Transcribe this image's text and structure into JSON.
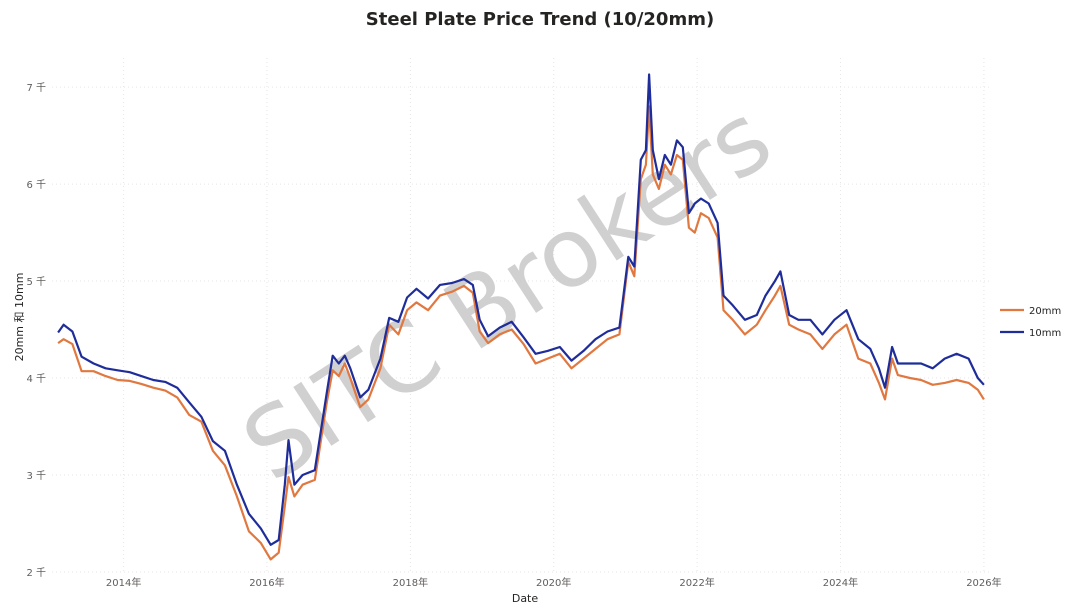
{
  "chart_data": {
    "type": "line",
    "title": "Steel Plate Price Trend (10/20mm)",
    "xlabel": "Date",
    "ylabel": "20mm 和 10mm",
    "ylim": [
      2000,
      7300
    ],
    "xlim": [
      "2013-01-01",
      "2026-02-01"
    ],
    "y_ticks": [
      {
        "value": 2000,
        "label": "2 千"
      },
      {
        "value": 3000,
        "label": "3 千"
      },
      {
        "value": 4000,
        "label": "4 千"
      },
      {
        "value": 5000,
        "label": "5 千"
      },
      {
        "value": 6000,
        "label": "6 千"
      },
      {
        "value": 7000,
        "label": "7 千"
      }
    ],
    "x_ticks": [
      {
        "date": "2014-01-01",
        "label": "2014年"
      },
      {
        "date": "2016-01-01",
        "label": "2016年"
      },
      {
        "date": "2018-01-01",
        "label": "2018年"
      },
      {
        "date": "2020-01-01",
        "label": "2020年"
      },
      {
        "date": "2022-01-01",
        "label": "2022年"
      },
      {
        "date": "2024-01-01",
        "label": "2024年"
      },
      {
        "date": "2026-01-01",
        "label": "2026年"
      }
    ],
    "grid": true,
    "legend_position": "right",
    "watermark": "SITC Brokers",
    "series": [
      {
        "name": "20mm",
        "color": "#e07840",
        "points": [
          [
            "2013-02-01",
            4360
          ],
          [
            "2013-03-01",
            4400
          ],
          [
            "2013-04-15",
            4350
          ],
          [
            "2013-06-01",
            4070
          ],
          [
            "2013-08-01",
            4070
          ],
          [
            "2013-10-01",
            4020
          ],
          [
            "2013-12-01",
            3980
          ],
          [
            "2014-02-01",
            3970
          ],
          [
            "2014-04-01",
            3940
          ],
          [
            "2014-06-01",
            3900
          ],
          [
            "2014-08-01",
            3870
          ],
          [
            "2014-10-01",
            3800
          ],
          [
            "2014-12-01",
            3620
          ],
          [
            "2015-02-01",
            3550
          ],
          [
            "2015-04-01",
            3250
          ],
          [
            "2015-06-01",
            3100
          ],
          [
            "2015-08-01",
            2780
          ],
          [
            "2015-10-01",
            2420
          ],
          [
            "2015-12-01",
            2300
          ],
          [
            "2016-01-20",
            2130
          ],
          [
            "2016-03-01",
            2200
          ],
          [
            "2016-04-01",
            2680
          ],
          [
            "2016-04-20",
            2980
          ],
          [
            "2016-05-20",
            2780
          ],
          [
            "2016-07-01",
            2900
          ],
          [
            "2016-09-01",
            2950
          ],
          [
            "2016-11-01",
            3750
          ],
          [
            "2016-12-01",
            4080
          ],
          [
            "2017-01-01",
            4020
          ],
          [
            "2017-02-01",
            4150
          ],
          [
            "2017-03-01",
            4000
          ],
          [
            "2017-04-20",
            3700
          ],
          [
            "2017-06-01",
            3780
          ],
          [
            "2017-08-01",
            4100
          ],
          [
            "2017-09-15",
            4550
          ],
          [
            "2017-11-01",
            4450
          ],
          [
            "2017-12-15",
            4700
          ],
          [
            "2018-02-01",
            4780
          ],
          [
            "2018-04-01",
            4700
          ],
          [
            "2018-06-01",
            4850
          ],
          [
            "2018-08-01",
            4890
          ],
          [
            "2018-10-01",
            4950
          ],
          [
            "2018-11-15",
            4880
          ],
          [
            "2018-12-20",
            4480
          ],
          [
            "2019-02-01",
            4360
          ],
          [
            "2019-04-01",
            4450
          ],
          [
            "2019-06-01",
            4500
          ],
          [
            "2019-08-01",
            4350
          ],
          [
            "2019-10-01",
            4150
          ],
          [
            "2019-12-01",
            4200
          ],
          [
            "2020-02-01",
            4250
          ],
          [
            "2020-04-01",
            4100
          ],
          [
            "2020-06-01",
            4200
          ],
          [
            "2020-08-01",
            4300
          ],
          [
            "2020-10-01",
            4400
          ],
          [
            "2020-12-01",
            4450
          ],
          [
            "2021-01-15",
            5200
          ],
          [
            "2021-02-15",
            5050
          ],
          [
            "2021-03-20",
            6050
          ],
          [
            "2021-04-15",
            6200
          ],
          [
            "2021-05-01",
            6800
          ],
          [
            "2021-05-20",
            6100
          ],
          [
            "2021-06-20",
            5950
          ],
          [
            "2021-07-20",
            6200
          ],
          [
            "2021-08-20",
            6100
          ],
          [
            "2021-09-20",
            6300
          ],
          [
            "2021-10-20",
            6250
          ],
          [
            "2021-11-20",
            5550
          ],
          [
            "2021-12-20",
            5500
          ],
          [
            "2022-01-20",
            5700
          ],
          [
            "2022-03-01",
            5650
          ],
          [
            "2022-04-15",
            5450
          ],
          [
            "2022-05-15",
            4700
          ],
          [
            "2022-07-01",
            4600
          ],
          [
            "2022-09-01",
            4450
          ],
          [
            "2022-11-01",
            4550
          ],
          [
            "2022-12-15",
            4700
          ],
          [
            "2023-02-01",
            4850
          ],
          [
            "2023-03-01",
            4950
          ],
          [
            "2023-04-15",
            4550
          ],
          [
            "2023-06-01",
            4500
          ],
          [
            "2023-08-01",
            4450
          ],
          [
            "2023-10-01",
            4300
          ],
          [
            "2023-12-01",
            4450
          ],
          [
            "2024-02-01",
            4550
          ],
          [
            "2024-04-01",
            4200
          ],
          [
            "2024-06-01",
            4150
          ],
          [
            "2024-07-15",
            3950
          ],
          [
            "2024-08-15",
            3780
          ],
          [
            "2024-09-20",
            4200
          ],
          [
            "2024-10-20",
            4030
          ],
          [
            "2024-12-20",
            4000
          ],
          [
            "2025-02-15",
            3980
          ],
          [
            "2025-04-15",
            3930
          ],
          [
            "2025-06-15",
            3950
          ],
          [
            "2025-08-15",
            3980
          ],
          [
            "2025-10-15",
            3950
          ],
          [
            "2025-12-01",
            3880
          ],
          [
            "2026-01-01",
            3780
          ]
        ]
      },
      {
        "name": "10mm",
        "color": "#1f2d9a",
        "points": [
          [
            "2013-02-01",
            4470
          ],
          [
            "2013-03-01",
            4550
          ],
          [
            "2013-04-15",
            4480
          ],
          [
            "2013-06-01",
            4220
          ],
          [
            "2013-08-01",
            4150
          ],
          [
            "2013-10-01",
            4100
          ],
          [
            "2013-12-01",
            4080
          ],
          [
            "2014-02-01",
            4060
          ],
          [
            "2014-04-01",
            4020
          ],
          [
            "2014-06-01",
            3980
          ],
          [
            "2014-08-01",
            3960
          ],
          [
            "2014-10-01",
            3900
          ],
          [
            "2014-12-01",
            3750
          ],
          [
            "2015-02-01",
            3600
          ],
          [
            "2015-04-01",
            3350
          ],
          [
            "2015-06-01",
            3250
          ],
          [
            "2015-08-01",
            2900
          ],
          [
            "2015-10-01",
            2600
          ],
          [
            "2015-12-01",
            2450
          ],
          [
            "2016-01-20",
            2280
          ],
          [
            "2016-03-01",
            2330
          ],
          [
            "2016-04-01",
            2900
          ],
          [
            "2016-04-20",
            3360
          ],
          [
            "2016-05-20",
            2900
          ],
          [
            "2016-07-01",
            3000
          ],
          [
            "2016-09-01",
            3050
          ],
          [
            "2016-11-01",
            3850
          ],
          [
            "2016-12-01",
            4230
          ],
          [
            "2017-01-01",
            4150
          ],
          [
            "2017-02-01",
            4230
          ],
          [
            "2017-03-01",
            4100
          ],
          [
            "2017-04-20",
            3800
          ],
          [
            "2017-06-01",
            3880
          ],
          [
            "2017-08-01",
            4200
          ],
          [
            "2017-09-15",
            4620
          ],
          [
            "2017-11-01",
            4580
          ],
          [
            "2017-12-15",
            4830
          ],
          [
            "2018-02-01",
            4920
          ],
          [
            "2018-04-01",
            4820
          ],
          [
            "2018-06-01",
            4960
          ],
          [
            "2018-08-01",
            4980
          ],
          [
            "2018-10-01",
            5020
          ],
          [
            "2018-11-15",
            4960
          ],
          [
            "2018-12-20",
            4600
          ],
          [
            "2019-02-01",
            4430
          ],
          [
            "2019-04-01",
            4520
          ],
          [
            "2019-06-01",
            4580
          ],
          [
            "2019-08-01",
            4420
          ],
          [
            "2019-10-01",
            4250
          ],
          [
            "2019-12-01",
            4280
          ],
          [
            "2020-02-01",
            4320
          ],
          [
            "2020-04-01",
            4180
          ],
          [
            "2020-06-01",
            4280
          ],
          [
            "2020-08-01",
            4400
          ],
          [
            "2020-10-01",
            4480
          ],
          [
            "2020-12-01",
            4520
          ],
          [
            "2021-01-15",
            5250
          ],
          [
            "2021-02-15",
            5150
          ],
          [
            "2021-03-20",
            6250
          ],
          [
            "2021-04-15",
            6350
          ],
          [
            "2021-05-01",
            7130
          ],
          [
            "2021-05-20",
            6350
          ],
          [
            "2021-06-20",
            6050
          ],
          [
            "2021-07-20",
            6300
          ],
          [
            "2021-08-20",
            6200
          ],
          [
            "2021-09-20",
            6450
          ],
          [
            "2021-10-20",
            6380
          ],
          [
            "2021-11-20",
            5700
          ],
          [
            "2021-12-20",
            5800
          ],
          [
            "2022-01-20",
            5850
          ],
          [
            "2022-03-01",
            5800
          ],
          [
            "2022-04-15",
            5600
          ],
          [
            "2022-05-15",
            4850
          ],
          [
            "2022-07-01",
            4750
          ],
          [
            "2022-09-01",
            4600
          ],
          [
            "2022-11-01",
            4650
          ],
          [
            "2022-12-15",
            4850
          ],
          [
            "2023-02-01",
            5000
          ],
          [
            "2023-03-01",
            5100
          ],
          [
            "2023-04-15",
            4650
          ],
          [
            "2023-06-01",
            4600
          ],
          [
            "2023-08-01",
            4600
          ],
          [
            "2023-10-01",
            4450
          ],
          [
            "2023-12-01",
            4600
          ],
          [
            "2024-02-01",
            4700
          ],
          [
            "2024-04-01",
            4400
          ],
          [
            "2024-06-01",
            4300
          ],
          [
            "2024-07-15",
            4100
          ],
          [
            "2024-08-15",
            3900
          ],
          [
            "2024-09-20",
            4320
          ],
          [
            "2024-10-20",
            4150
          ],
          [
            "2024-12-20",
            4150
          ],
          [
            "2025-02-15",
            4150
          ],
          [
            "2025-04-15",
            4100
          ],
          [
            "2025-06-15",
            4200
          ],
          [
            "2025-08-15",
            4250
          ],
          [
            "2025-10-15",
            4200
          ],
          [
            "2025-12-01",
            4000
          ],
          [
            "2026-01-01",
            3930
          ]
        ]
      }
    ]
  }
}
